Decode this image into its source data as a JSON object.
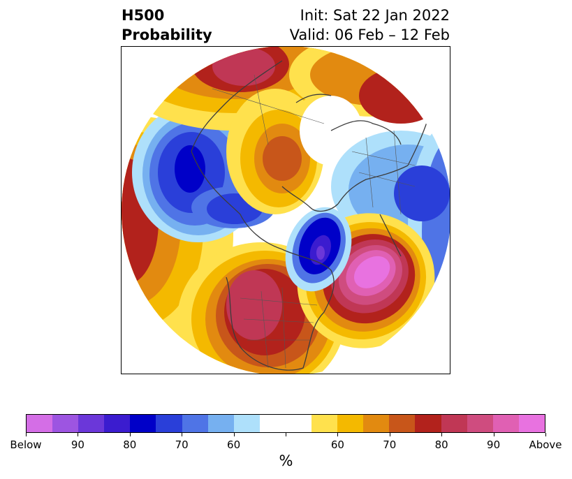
{
  "title": {
    "left_line1": "H500",
    "left_line2": "Probability",
    "right_line1": "Init: Sat 22 Jan 2022",
    "right_line2": "Valid: 06 Feb – 12 Feb"
  },
  "colorbar": {
    "unit": "%",
    "colors": [
      "#d46ee6",
      "#9d55e1",
      "#6b37d9",
      "#3b1ccf",
      "#0000c8",
      "#2a3fd9",
      "#4f74e6",
      "#76b0f0",
      "#aee0fb",
      "#ffffff",
      "#ffffff",
      "#ffe14d",
      "#f4b900",
      "#e28a10",
      "#c8561a",
      "#b2221c",
      "#c03755",
      "#cf4c7f",
      "#e060b3",
      "#e872e0"
    ],
    "tick_labels": [
      "Below",
      "90",
      "80",
      "70",
      "60",
      "",
      "60",
      "70",
      "80",
      "90",
      "Above"
    ]
  },
  "map": {
    "projection": "north-polar-stereographic",
    "region": "Northern Hemisphere"
  }
}
